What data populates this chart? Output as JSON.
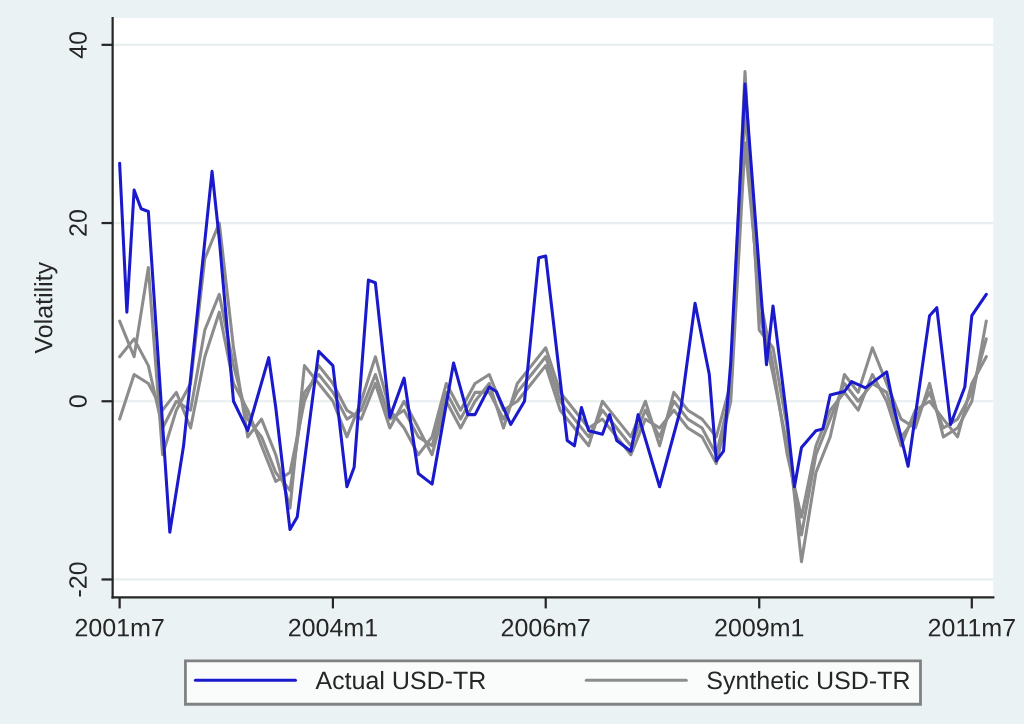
{
  "chart_data": {
    "type": "line",
    "ylabel": "Volatility",
    "xlim": [
      "2001-06",
      "2011-10"
    ],
    "ylim": [
      -22,
      43
    ],
    "xticks": [
      {
        "value": "2001-07",
        "label": "2001m7"
      },
      {
        "value": "2004-01",
        "label": "2004m1"
      },
      {
        "value": "2006-07",
        "label": "2006m7"
      },
      {
        "value": "2009-01",
        "label": "2009m1"
      },
      {
        "value": "2011-07",
        "label": "2011m7"
      }
    ],
    "yticks": [
      -20,
      0,
      20,
      40
    ],
    "grid": "y",
    "legend": "bottom",
    "x": [
      "2001-07",
      "2001-09",
      "2001-11",
      "2002-01",
      "2002-03",
      "2002-05",
      "2002-07",
      "2002-09",
      "2002-11",
      "2003-01",
      "2003-03",
      "2003-05",
      "2003-07",
      "2003-09",
      "2003-11",
      "2004-01",
      "2004-03",
      "2004-05",
      "2004-07",
      "2004-09",
      "2004-11",
      "2005-01",
      "2005-03",
      "2005-05",
      "2005-07",
      "2005-09",
      "2005-11",
      "2006-01",
      "2006-03",
      "2006-05",
      "2006-07",
      "2006-09",
      "2006-11",
      "2007-01",
      "2007-03",
      "2007-05",
      "2007-07",
      "2007-09",
      "2007-11",
      "2008-01",
      "2008-03",
      "2008-05",
      "2008-07",
      "2008-09",
      "2008-11",
      "2009-01",
      "2009-03",
      "2009-05",
      "2009-07",
      "2009-09",
      "2009-11",
      "2010-01",
      "2010-03",
      "2010-05",
      "2010-07",
      "2010-09",
      "2010-11",
      "2011-01",
      "2011-03",
      "2011-05",
      "2011-07",
      "2011-09"
    ],
    "series": [
      {
        "name": "Actual USD-TR",
        "color": "#1a1acc",
        "x": [
          "2001-07",
          "2001-08",
          "2001-09",
          "2001-10",
          "2001-11",
          "2002-02",
          "2002-04",
          "2002-08",
          "2002-09",
          "2002-11",
          "2003-01",
          "2003-04",
          "2003-05",
          "2003-07",
          "2003-08",
          "2003-11",
          "2004-01",
          "2004-03",
          "2004-04",
          "2004-06",
          "2004-07",
          "2004-09",
          "2004-11",
          "2005-01",
          "2005-03",
          "2005-06",
          "2005-08",
          "2005-09",
          "2005-11",
          "2005-12",
          "2006-02",
          "2006-04",
          "2006-06",
          "2006-07",
          "2006-10",
          "2006-11",
          "2006-12",
          "2007-01",
          "2007-03",
          "2007-04",
          "2007-05",
          "2007-07",
          "2007-08",
          "2007-11",
          "2008-02",
          "2008-04",
          "2008-06",
          "2008-07",
          "2008-08",
          "2008-09",
          "2008-11",
          "2009-02",
          "2009-03",
          "2009-05",
          "2009-06",
          "2009-07",
          "2009-09",
          "2009-10",
          "2009-11",
          "2010-01",
          "2010-02",
          "2010-04",
          "2010-07",
          "2010-08",
          "2010-10",
          "2011-01",
          "2011-02",
          "2011-04",
          "2011-06",
          "2011-07",
          "2011-09"
        ],
        "values": [
          26.7,
          10,
          23.7,
          21.6,
          21.3,
          -14.7,
          -5,
          25.8,
          18.2,
          0,
          -3.3,
          4.9,
          -0.7,
          -14.4,
          -13,
          5.6,
          4,
          -9.6,
          -7.4,
          13.6,
          13.3,
          -1.8,
          2.6,
          -8.1,
          -9.3,
          4.3,
          -1.5,
          -1.5,
          1.6,
          1.1,
          -2.6,
          0,
          16.1,
          16.3,
          -4.4,
          -5,
          -0.7,
          -3.3,
          -3.7,
          -1.5,
          -4.4,
          -5.6,
          -1.5,
          -9.6,
          -0.7,
          11,
          3,
          -6.7,
          -5.6,
          4.4,
          35.6,
          4.1,
          10.7,
          -2.2,
          -9.6,
          -5.2,
          -3.3,
          -3.1,
          0.7,
          1.1,
          2.2,
          1.5,
          3.3,
          -0.7,
          -7.3,
          9.6,
          10.5,
          -2.6,
          1.6,
          9.6,
          12
        ]
      },
      {
        "name": "Synthetic USD-TR",
        "color": "#8c8c8c",
        "values": [
          5,
          7,
          4,
          -3,
          0,
          -1,
          8,
          12,
          4,
          -2,
          -4,
          -8,
          -10,
          1,
          3,
          1,
          -2,
          -1,
          3,
          -2,
          -1,
          -4,
          -5,
          1,
          -2,
          1,
          1,
          -2,
          1,
          3,
          5,
          0,
          -2,
          -4,
          -1,
          -3,
          -5,
          -1,
          -4,
          0,
          -2,
          -3,
          -6,
          1,
          33,
          10,
          3,
          -5,
          -15,
          -6,
          -2,
          2,
          0,
          2,
          1,
          -4,
          -2,
          1,
          -3,
          -2,
          1,
          7
        ]
      },
      {
        "color": "#8c8c8c",
        "values": [
          9,
          5,
          15,
          -6,
          -1,
          2,
          16,
          20,
          6,
          -4,
          -2,
          -6,
          -12,
          4,
          2,
          0,
          -4,
          0,
          5,
          -1,
          -3,
          -6,
          -4,
          2,
          -1,
          2,
          3,
          -1,
          0,
          2,
          4,
          -1,
          -3,
          -5,
          0,
          -2,
          -4,
          0,
          -5,
          1,
          -1,
          -2,
          -4,
          2,
          37,
          8,
          6,
          -3,
          -18,
          -8,
          -4,
          3,
          1,
          6,
          2,
          -2,
          -3,
          2,
          -4,
          -3,
          0,
          9
        ]
      },
      {
        "color": "#8c8c8c",
        "values": [
          -2,
          3,
          2,
          -1,
          1,
          -3,
          5,
          10,
          2,
          -1,
          -5,
          -9,
          -8,
          0,
          4,
          2,
          -1,
          -2,
          2,
          -3,
          0,
          -3,
          -6,
          0,
          -3,
          0,
          2,
          -3,
          2,
          4,
          6,
          1,
          -1,
          -3,
          -2,
          -4,
          -6,
          -2,
          -3,
          -1,
          -3,
          -4,
          -7,
          0,
          29,
          12,
          4,
          -6,
          -13,
          -5,
          -1,
          1,
          -1,
          3,
          0,
          -5,
          -1,
          0,
          -2,
          -4,
          2,
          5
        ]
      }
    ]
  }
}
